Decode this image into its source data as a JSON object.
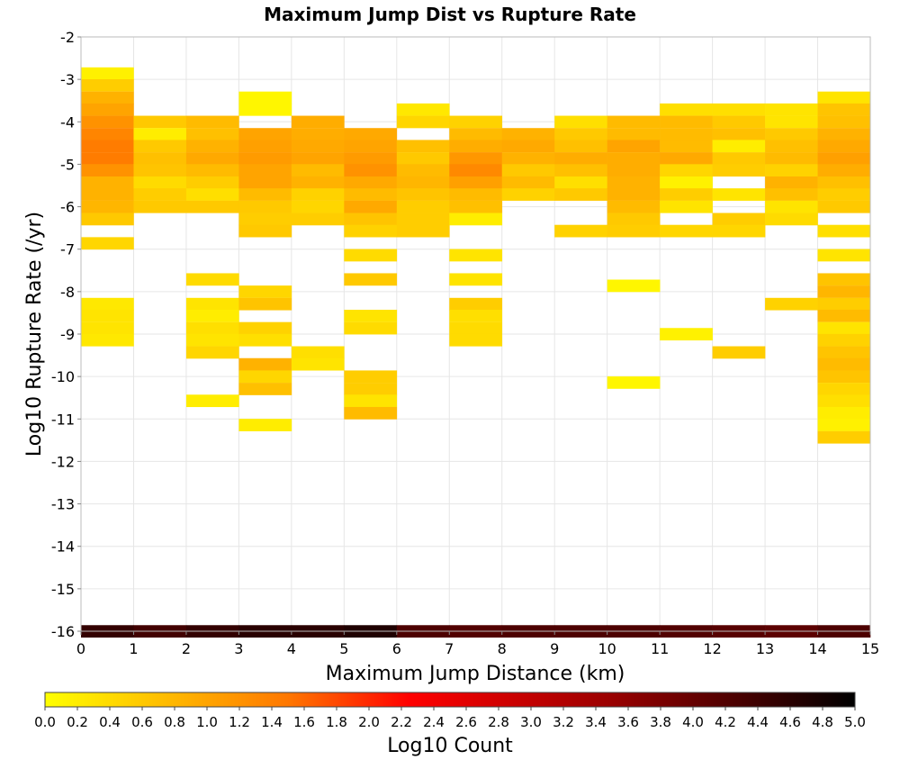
{
  "chart_data": {
    "type": "heatmap",
    "title": "Maximum Jump Dist vs Rupture Rate",
    "xlabel": "Maximum Jump Distance (km)",
    "ylabel": "Log10 Rupture Rate (/yr)",
    "xlim": [
      0,
      15
    ],
    "ylim": [
      -16,
      -2
    ],
    "x_ticks": [
      "0",
      "1",
      "2",
      "3",
      "4",
      "5",
      "6",
      "7",
      "8",
      "9",
      "10",
      "11",
      "12",
      "13",
      "14",
      "15"
    ],
    "y_ticks": [
      "-2",
      "-3",
      "-4",
      "-5",
      "-6",
      "-7",
      "-8",
      "-9",
      "-10",
      "-11",
      "-12",
      "-13",
      "-14",
      "-15",
      "-16"
    ],
    "x_bin_width": 1,
    "y_bin_width": 0.2857,
    "grid": true,
    "colorbar": {
      "label": "Log10 Count",
      "range": [
        0,
        5
      ],
      "ticks": [
        "0.0",
        "0.2",
        "0.4",
        "0.6",
        "0.8",
        "1.0",
        "1.2",
        "1.4",
        "1.6",
        "1.8",
        "2.0",
        "2.2",
        "2.4",
        "2.6",
        "2.8",
        "3.0",
        "3.2",
        "3.4",
        "3.6",
        "3.8",
        "4.0",
        "4.2",
        "4.4",
        "4.6",
        "4.8",
        "5.0"
      ],
      "colors": [
        "#ffff00",
        "#ff7700",
        "#ff0000",
        "#990000",
        "#000000"
      ]
    },
    "cells": [
      [
        0.5,
        -2.86,
        0.15
      ],
      [
        0.5,
        -3.14,
        0.55
      ],
      [
        0.5,
        -3.43,
        0.85
      ],
      [
        0.5,
        -3.71,
        1.0
      ],
      [
        0.5,
        -4.0,
        1.2
      ],
      [
        0.5,
        -4.29,
        1.35
      ],
      [
        0.5,
        -4.57,
        1.45
      ],
      [
        0.5,
        -4.86,
        1.45
      ],
      [
        0.5,
        -5.14,
        1.2
      ],
      [
        0.5,
        -5.43,
        0.85
      ],
      [
        0.5,
        -5.71,
        0.85
      ],
      [
        0.5,
        -6.0,
        0.8
      ],
      [
        0.5,
        -6.29,
        0.6
      ],
      [
        0.5,
        -6.86,
        0.45
      ],
      [
        0.5,
        -8.29,
        0.25
      ],
      [
        0.5,
        -8.57,
        0.3
      ],
      [
        0.5,
        -8.86,
        0.3
      ],
      [
        0.5,
        -9.14,
        0.25
      ],
      [
        1.5,
        -4.0,
        0.6
      ],
      [
        1.5,
        -4.29,
        0.2
      ],
      [
        1.5,
        -4.57,
        0.6
      ],
      [
        1.5,
        -4.86,
        0.7
      ],
      [
        1.5,
        -5.14,
        0.65
      ],
      [
        1.5,
        -5.43,
        0.4
      ],
      [
        1.5,
        -5.71,
        0.55
      ],
      [
        1.5,
        -6.0,
        0.6
      ],
      [
        2.5,
        -4.0,
        0.75
      ],
      [
        2.5,
        -4.29,
        0.7
      ],
      [
        2.5,
        -4.57,
        0.85
      ],
      [
        2.5,
        -4.86,
        0.95
      ],
      [
        2.5,
        -5.14,
        0.75
      ],
      [
        2.5,
        -5.43,
        0.55
      ],
      [
        2.5,
        -5.71,
        0.35
      ],
      [
        2.5,
        -6.0,
        0.6
      ],
      [
        2.5,
        -7.71,
        0.4
      ],
      [
        2.5,
        -8.29,
        0.3
      ],
      [
        2.5,
        -8.57,
        0.2
      ],
      [
        2.5,
        -8.86,
        0.35
      ],
      [
        2.5,
        -9.14,
        0.3
      ],
      [
        2.5,
        -9.43,
        0.45
      ],
      [
        2.5,
        -10.57,
        0.2
      ],
      [
        3.5,
        -3.43,
        0.1
      ],
      [
        3.5,
        -3.71,
        0.1
      ],
      [
        3.5,
        -4.29,
        1.0
      ],
      [
        3.5,
        -4.57,
        1.05
      ],
      [
        3.5,
        -4.86,
        1.1
      ],
      [
        3.5,
        -5.14,
        1.0
      ],
      [
        3.5,
        -5.43,
        1.0
      ],
      [
        3.5,
        -5.71,
        0.75
      ],
      [
        3.5,
        -6.0,
        0.6
      ],
      [
        3.5,
        -6.29,
        0.55
      ],
      [
        3.5,
        -6.57,
        0.6
      ],
      [
        3.5,
        -8.0,
        0.45
      ],
      [
        3.5,
        -8.29,
        0.65
      ],
      [
        3.5,
        -8.86,
        0.5
      ],
      [
        3.5,
        -9.14,
        0.35
      ],
      [
        3.5,
        -9.71,
        0.85
      ],
      [
        3.5,
        -10.0,
        0.45
      ],
      [
        3.5,
        -10.29,
        0.7
      ],
      [
        3.5,
        -11.14,
        0.2
      ],
      [
        4.5,
        -4.0,
        0.9
      ],
      [
        4.5,
        -4.29,
        0.9
      ],
      [
        4.5,
        -4.57,
        0.95
      ],
      [
        4.5,
        -4.86,
        1.0
      ],
      [
        4.5,
        -5.14,
        0.75
      ],
      [
        4.5,
        -5.43,
        0.85
      ],
      [
        4.5,
        -5.71,
        0.5
      ],
      [
        4.5,
        -6.0,
        0.45
      ],
      [
        4.5,
        -6.29,
        0.55
      ],
      [
        4.5,
        -9.43,
        0.35
      ],
      [
        4.5,
        -9.71,
        0.3
      ],
      [
        5.5,
        -4.29,
        0.95
      ],
      [
        5.5,
        -4.57,
        1.0
      ],
      [
        5.5,
        -4.86,
        1.1
      ],
      [
        5.5,
        -5.14,
        1.2
      ],
      [
        5.5,
        -5.43,
        0.95
      ],
      [
        5.5,
        -5.71,
        0.75
      ],
      [
        5.5,
        -6.0,
        0.95
      ],
      [
        5.5,
        -6.29,
        0.65
      ],
      [
        5.5,
        -6.57,
        0.5
      ],
      [
        5.5,
        -7.14,
        0.4
      ],
      [
        5.5,
        -7.71,
        0.6
      ],
      [
        5.5,
        -8.57,
        0.3
      ],
      [
        5.5,
        -8.86,
        0.4
      ],
      [
        5.5,
        -10.0,
        0.55
      ],
      [
        5.5,
        -10.29,
        0.55
      ],
      [
        5.5,
        -10.57,
        0.3
      ],
      [
        5.5,
        -10.86,
        0.75
      ],
      [
        6.5,
        -3.71,
        0.25
      ],
      [
        6.5,
        -4.0,
        0.45
      ],
      [
        6.5,
        -4.57,
        0.7
      ],
      [
        6.5,
        -4.86,
        0.6
      ],
      [
        6.5,
        -5.14,
        0.75
      ],
      [
        6.5,
        -5.43,
        0.8
      ],
      [
        6.5,
        -5.71,
        0.65
      ],
      [
        6.5,
        -6.0,
        0.55
      ],
      [
        6.5,
        -6.29,
        0.55
      ],
      [
        6.5,
        -6.57,
        0.55
      ],
      [
        7.5,
        -4.0,
        0.5
      ],
      [
        7.5,
        -4.29,
        0.75
      ],
      [
        7.5,
        -4.57,
        0.9
      ],
      [
        7.5,
        -4.86,
        1.15
      ],
      [
        7.5,
        -5.14,
        1.3
      ],
      [
        7.5,
        -5.43,
        1.05
      ],
      [
        7.5,
        -5.71,
        0.75
      ],
      [
        7.5,
        -6.0,
        0.7
      ],
      [
        7.5,
        -6.29,
        0.2
      ],
      [
        7.5,
        -7.14,
        0.3
      ],
      [
        7.5,
        -7.71,
        0.3
      ],
      [
        7.5,
        -8.29,
        0.55
      ],
      [
        7.5,
        -8.57,
        0.35
      ],
      [
        7.5,
        -8.86,
        0.4
      ],
      [
        7.5,
        -9.14,
        0.4
      ],
      [
        8.5,
        -4.29,
        0.85
      ],
      [
        8.5,
        -4.57,
        0.95
      ],
      [
        8.5,
        -4.86,
        0.85
      ],
      [
        8.5,
        -5.14,
        0.6
      ],
      [
        8.5,
        -5.43,
        0.75
      ],
      [
        8.5,
        -5.71,
        0.5
      ],
      [
        9.5,
        -4.0,
        0.35
      ],
      [
        9.5,
        -4.29,
        0.6
      ],
      [
        9.5,
        -4.57,
        0.7
      ],
      [
        9.5,
        -4.86,
        0.9
      ],
      [
        9.5,
        -5.14,
        0.7
      ],
      [
        9.5,
        -5.43,
        0.35
      ],
      [
        9.5,
        -5.71,
        0.6
      ],
      [
        9.5,
        -6.57,
        0.5
      ],
      [
        10.5,
        -4.0,
        0.75
      ],
      [
        10.5,
        -4.29,
        0.75
      ],
      [
        10.5,
        -4.57,
        1.0
      ],
      [
        10.5,
        -4.86,
        0.9
      ],
      [
        10.5,
        -5.14,
        0.9
      ],
      [
        10.5,
        -5.43,
        0.85
      ],
      [
        10.5,
        -5.71,
        0.85
      ],
      [
        10.5,
        -6.0,
        0.75
      ],
      [
        10.5,
        -6.29,
        0.6
      ],
      [
        10.5,
        -6.57,
        0.55
      ],
      [
        10.5,
        -7.86,
        0.1
      ],
      [
        10.5,
        -10.14,
        0.1
      ],
      [
        11.5,
        -3.71,
        0.35
      ],
      [
        11.5,
        -4.0,
        0.75
      ],
      [
        11.5,
        -4.29,
        0.75
      ],
      [
        11.5,
        -4.57,
        0.75
      ],
      [
        11.5,
        -4.86,
        0.95
      ],
      [
        11.5,
        -5.14,
        0.45
      ],
      [
        11.5,
        -5.43,
        0.15
      ],
      [
        11.5,
        -5.71,
        0.55
      ],
      [
        11.5,
        -6.0,
        0.3
      ],
      [
        11.5,
        -6.57,
        0.45
      ],
      [
        11.5,
        -9.0,
        0.15
      ],
      [
        12.5,
        -3.71,
        0.35
      ],
      [
        12.5,
        -4.0,
        0.6
      ],
      [
        12.5,
        -4.29,
        0.7
      ],
      [
        12.5,
        -4.57,
        0.2
      ],
      [
        12.5,
        -4.86,
        0.6
      ],
      [
        12.5,
        -5.14,
        0.55
      ],
      [
        12.5,
        -5.71,
        0.3
      ],
      [
        12.5,
        -6.29,
        0.55
      ],
      [
        12.5,
        -6.57,
        0.45
      ],
      [
        12.5,
        -9.43,
        0.55
      ],
      [
        13.5,
        -3.71,
        0.3
      ],
      [
        13.5,
        -4.0,
        0.3
      ],
      [
        13.5,
        -4.29,
        0.6
      ],
      [
        13.5,
        -4.57,
        0.7
      ],
      [
        13.5,
        -4.86,
        0.75
      ],
      [
        13.5,
        -5.14,
        0.5
      ],
      [
        13.5,
        -5.43,
        0.85
      ],
      [
        13.5,
        -5.71,
        0.7
      ],
      [
        13.5,
        -6.0,
        0.3
      ],
      [
        13.5,
        -6.29,
        0.4
      ],
      [
        13.5,
        -8.29,
        0.5
      ],
      [
        14.5,
        -3.43,
        0.3
      ],
      [
        14.5,
        -3.71,
        0.65
      ],
      [
        14.5,
        -4.0,
        0.7
      ],
      [
        14.5,
        -4.29,
        0.85
      ],
      [
        14.5,
        -4.57,
        0.95
      ],
      [
        14.5,
        -4.86,
        1.05
      ],
      [
        14.5,
        -5.14,
        0.9
      ],
      [
        14.5,
        -5.43,
        0.7
      ],
      [
        14.5,
        -5.71,
        0.55
      ],
      [
        14.5,
        -6.0,
        0.6
      ],
      [
        14.5,
        -6.57,
        0.35
      ],
      [
        14.5,
        -7.14,
        0.3
      ],
      [
        14.5,
        -7.71,
        0.65
      ],
      [
        14.5,
        -8.0,
        0.8
      ],
      [
        14.5,
        -8.29,
        0.55
      ],
      [
        14.5,
        -8.57,
        0.75
      ],
      [
        14.5,
        -8.86,
        0.3
      ],
      [
        14.5,
        -9.14,
        0.5
      ],
      [
        14.5,
        -9.43,
        0.65
      ],
      [
        14.5,
        -9.71,
        0.75
      ],
      [
        14.5,
        -10.0,
        0.65
      ],
      [
        14.5,
        -10.29,
        0.45
      ],
      [
        14.5,
        -10.57,
        0.35
      ],
      [
        14.5,
        -10.86,
        0.2
      ],
      [
        14.5,
        -11.14,
        0.15
      ],
      [
        14.5,
        -11.43,
        0.55
      ],
      [
        0.5,
        -16.0,
        4.5
      ],
      [
        1.5,
        -16.0,
        4.35
      ],
      [
        2.5,
        -16.0,
        4.5
      ],
      [
        3.5,
        -16.0,
        4.6
      ],
      [
        4.5,
        -16.0,
        4.6
      ],
      [
        5.5,
        -16.0,
        4.7
      ],
      [
        6.5,
        -16.0,
        4.25
      ],
      [
        7.5,
        -16.0,
        4.2
      ],
      [
        8.5,
        -16.0,
        4.25
      ],
      [
        9.5,
        -16.0,
        4.25
      ],
      [
        10.5,
        -16.0,
        4.25
      ],
      [
        11.5,
        -16.0,
        4.2
      ],
      [
        12.5,
        -16.0,
        4.15
      ],
      [
        13.5,
        -16.0,
        4.1
      ],
      [
        14.5,
        -16.0,
        4.25
      ]
    ]
  }
}
